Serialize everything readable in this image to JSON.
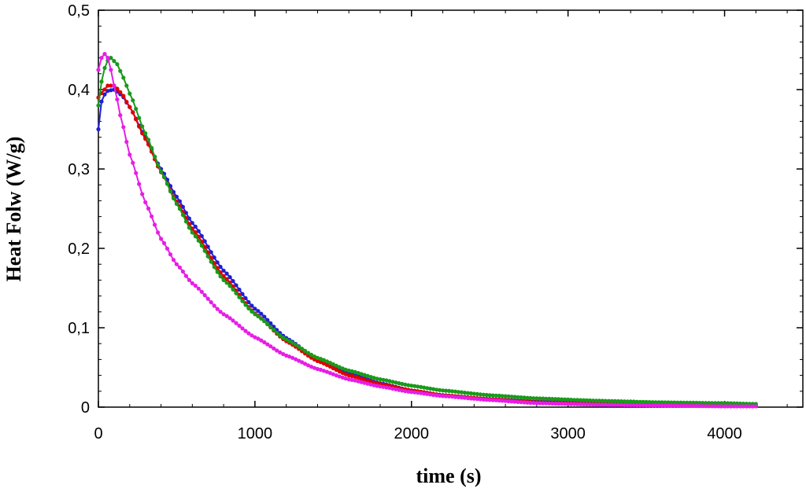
{
  "chart_data": {
    "type": "scatter",
    "title": "",
    "xlabel": "time (s)",
    "ylabel": "Heat Folw (W/g)",
    "xlim": [
      0,
      4500
    ],
    "ylim": [
      0,
      0.5
    ],
    "x_ticks": [
      0,
      1000,
      2000,
      3000,
      4000
    ],
    "x_tick_labels": [
      "0",
      "1000",
      "2000",
      "3000",
      "4000"
    ],
    "y_ticks": [
      0,
      0.1,
      0.2,
      0.3,
      0.4,
      0.5
    ],
    "y_tick_labels": [
      "0",
      "0,1",
      "0,2",
      "0,3",
      "0,4",
      "0,5"
    ],
    "grid": false,
    "legend": "none",
    "series": [
      {
        "color": "#1f1fd6",
        "x": [
          0,
          20,
          50,
          100,
          150,
          200,
          300,
          400,
          500,
          600,
          800,
          1000,
          1200,
          1400,
          1600,
          1800,
          2000,
          2200,
          2500,
          2800,
          3200,
          3600,
          4000,
          4200
        ],
        "y": [
          0.35,
          0.385,
          0.398,
          0.4,
          0.393,
          0.378,
          0.34,
          0.3,
          0.265,
          0.232,
          0.172,
          0.124,
          0.087,
          0.06,
          0.042,
          0.03,
          0.021,
          0.015,
          0.01,
          0.007,
          0.005,
          0.003,
          0.002,
          0.002
        ]
      },
      {
        "color": "#e00000",
        "x": [
          0,
          30,
          60,
          100,
          150,
          200,
          300,
          400,
          500,
          600,
          800,
          1000,
          1200,
          1400,
          1600,
          1800,
          2000,
          2200,
          2500,
          2800,
          3200,
          3600,
          4000,
          4200
        ],
        "y": [
          0.39,
          0.398,
          0.405,
          0.405,
          0.395,
          0.378,
          0.338,
          0.296,
          0.259,
          0.225,
          0.165,
          0.118,
          0.083,
          0.058,
          0.04,
          0.029,
          0.021,
          0.015,
          0.01,
          0.006,
          0.004,
          0.003,
          0.002,
          0.002
        ]
      },
      {
        "color": "#1a9a1a",
        "x": [
          0,
          20,
          50,
          80,
          120,
          160,
          200,
          300,
          400,
          500,
          600,
          800,
          1000,
          1200,
          1400,
          1600,
          1800,
          2000,
          2200,
          2500,
          2800,
          3200,
          3600,
          4000,
          4200
        ],
        "y": [
          0.38,
          0.41,
          0.435,
          0.44,
          0.432,
          0.415,
          0.395,
          0.345,
          0.297,
          0.256,
          0.22,
          0.16,
          0.117,
          0.085,
          0.062,
          0.046,
          0.035,
          0.027,
          0.021,
          0.015,
          0.011,
          0.008,
          0.006,
          0.005,
          0.004
        ]
      },
      {
        "color": "#e61ee6",
        "x": [
          0,
          20,
          40,
          60,
          80,
          100,
          150,
          200,
          300,
          400,
          500,
          600,
          800,
          1000,
          1200,
          1400,
          1600,
          1800,
          2000,
          2200,
          2500,
          2800,
          3200,
          3600,
          4000,
          4200
        ],
        "y": [
          0.425,
          0.44,
          0.445,
          0.44,
          0.425,
          0.405,
          0.36,
          0.318,
          0.258,
          0.212,
          0.18,
          0.156,
          0.117,
          0.088,
          0.065,
          0.048,
          0.035,
          0.026,
          0.019,
          0.014,
          0.009,
          0.005,
          0.003,
          0.002,
          0.001,
          0.001
        ]
      }
    ]
  }
}
